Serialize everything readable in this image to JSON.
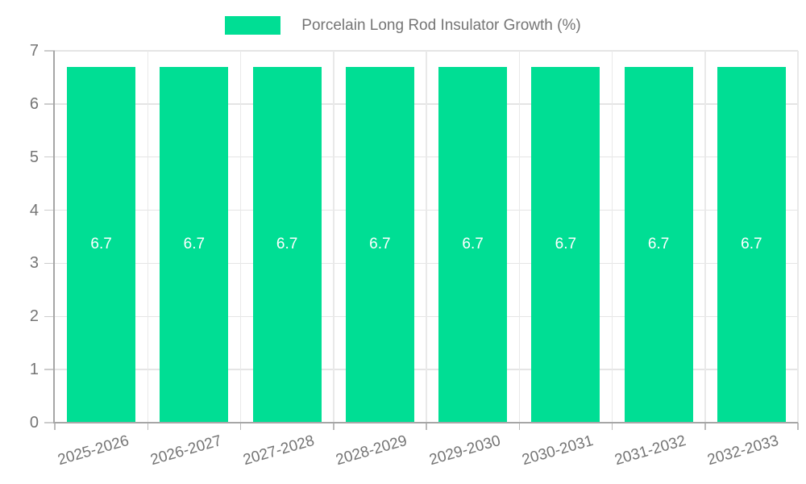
{
  "chart_data": {
    "type": "bar",
    "title": "Porcelain Long Rod Insulator Growth (%)",
    "categories": [
      "2025-2026",
      "2026-2027",
      "2027-2028",
      "2028-2029",
      "2029-2030",
      "2030-2031",
      "2031-2032",
      "2032-2033"
    ],
    "values": [
      6.7,
      6.7,
      6.7,
      6.7,
      6.7,
      6.7,
      6.7,
      6.7
    ],
    "bar_value_labels": [
      "6.7",
      "6.7",
      "6.7",
      "6.7",
      "6.7",
      "6.7",
      "6.7",
      "6.7"
    ],
    "xlabel": "",
    "ylabel": "",
    "ylim": [
      0,
      7
    ],
    "yticks": [
      0,
      1,
      2,
      3,
      4,
      5,
      6,
      7
    ],
    "grid": true,
    "legend_position": "top-center",
    "colors": {
      "bar": "#00de94",
      "bar_label_text": "#ffffff",
      "axis_line": "#a6a6a6",
      "tick": "#c4c4c4",
      "gridline": "#e5e5e5",
      "label_text": "#757575",
      "background": "#ffffff"
    }
  }
}
